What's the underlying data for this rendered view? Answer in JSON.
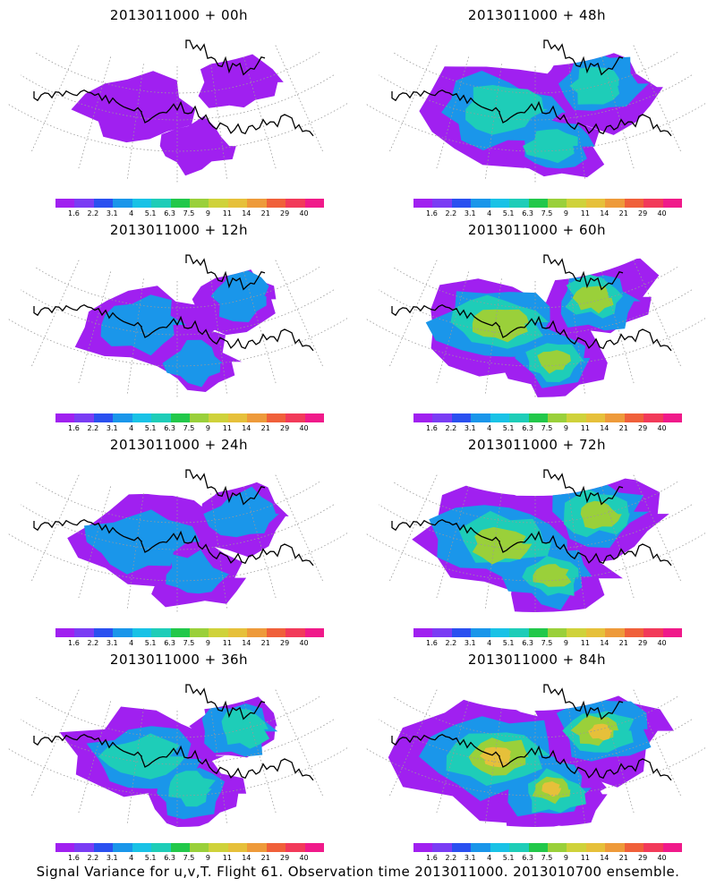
{
  "panels": [
    {
      "title": "2013011000 + 00h",
      "intensity": 0.15
    },
    {
      "title": "2013011000 + 48h",
      "intensity": 0.55
    },
    {
      "title": "2013011000 + 12h",
      "intensity": 0.25
    },
    {
      "title": "2013011000 + 60h",
      "intensity": 0.6
    },
    {
      "title": "2013011000 + 24h",
      "intensity": 0.35
    },
    {
      "title": "2013011000 + 72h",
      "intensity": 0.7
    },
    {
      "title": "2013011000 + 36h",
      "intensity": 0.4
    },
    {
      "title": "2013011000 + 84h",
      "intensity": 0.8
    }
  ],
  "colorbar": {
    "labels": [
      "1.6",
      "2.2",
      "3.1",
      "4",
      "5.1",
      "6.3",
      "7.5",
      "9",
      "11",
      "14",
      "21",
      "29",
      "40"
    ],
    "colors": [
      "#a020f0",
      "#7a3cf4",
      "#2a50f0",
      "#1a96ea",
      "#19c2e6",
      "#1ecdb8",
      "#22c84a",
      "#9ad03a",
      "#cfd23a",
      "#e6c03a",
      "#ee9a3a",
      "#f0603a",
      "#f23a5a",
      "#f01a8a"
    ]
  },
  "caption": "Signal Variance for u,v,T. Flight 61. Observation time 2013011000. 2013010700 ensemble.",
  "colors": {
    "coast": "#000000",
    "grid": "#9a9a9a",
    "background": "#ffffff"
  }
}
